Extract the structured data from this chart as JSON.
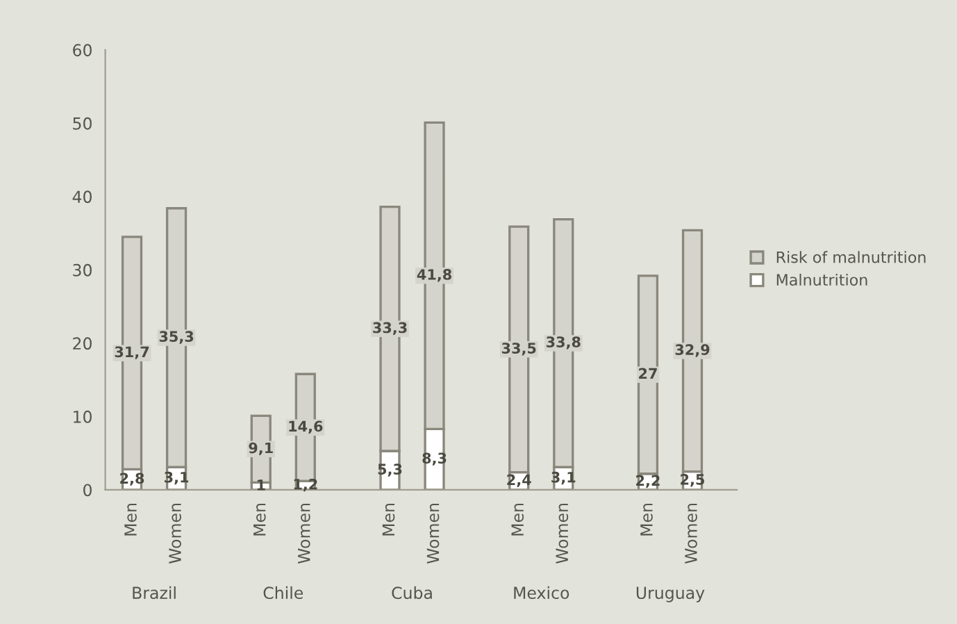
{
  "chart_data": {
    "type": "bar",
    "stacked": true,
    "categories": [
      "Men",
      "Women",
      "Men",
      "Women",
      "Men",
      "Women",
      "Men",
      "Women",
      "Men",
      "Women"
    ],
    "series": [
      {
        "name": "Malnutrition",
        "color": "#ffffff",
        "values": [
          2.8,
          3.1,
          1,
          1.2,
          5.3,
          8.3,
          2.4,
          3.1,
          2.2,
          2.5
        ],
        "value_labels": [
          "2,8",
          "3,1",
          "1",
          "1,2",
          "5,3",
          "8,3",
          "2,4",
          "3,1",
          "2,2",
          "2,5"
        ]
      },
      {
        "name": "Risk of malnutrition",
        "color": "#d4d4cc",
        "values": [
          31.7,
          35.3,
          9.1,
          14.6,
          33.3,
          41.8,
          33.5,
          33.8,
          27,
          32.9
        ],
        "value_labels": [
          "31,7",
          "35,3",
          "9,1",
          "14,6",
          "33,3",
          "41,8",
          "33,5",
          "33,8",
          "27",
          "32,9"
        ]
      }
    ],
    "ylim": [
      0,
      60
    ],
    "yticks": [
      0,
      10,
      20,
      30,
      40,
      50,
      60
    ],
    "annotations": [
      "Brazil",
      "Chile",
      "Cuba",
      "Mexico",
      "Uruguay"
    ],
    "legend": "right",
    "grid": false
  }
}
